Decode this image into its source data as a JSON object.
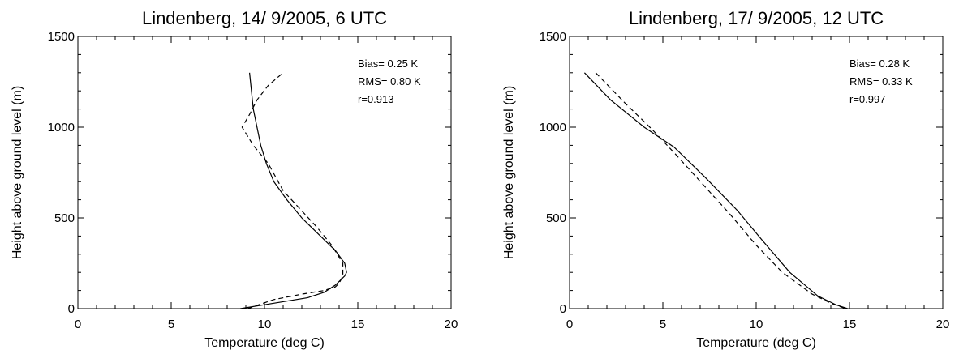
{
  "chart_data": [
    {
      "type": "line",
      "title": "Lindenberg, 14/ 9/2005,  6 UTC",
      "xlabel": "Temperature (deg C)",
      "ylabel": "Height above ground level (m)",
      "xlim": [
        0,
        20
      ],
      "ylim": [
        0,
        1500
      ],
      "x_ticks": [
        "0",
        "5",
        "10",
        "15",
        "20"
      ],
      "y_ticks": [
        "0",
        "500",
        "1000",
        "1500"
      ],
      "grid": false,
      "stats": [
        "Bias=  0.25 K",
        "RMS=  0.80 K",
        "r=0.913"
      ],
      "series": [
        {
          "style": "solid",
          "points": [
            [
              8.7,
              0
            ],
            [
              10.5,
              30
            ],
            [
              12.3,
              60
            ],
            [
              13.2,
              90
            ],
            [
              13.8,
              130
            ],
            [
              14.0,
              150
            ],
            [
              14.3,
              180
            ],
            [
              14.4,
              200
            ],
            [
              14.3,
              250
            ],
            [
              13.8,
              320
            ],
            [
              13.0,
              400
            ],
            [
              12.0,
              500
            ],
            [
              11.2,
              600
            ],
            [
              10.5,
              700
            ],
            [
              10.1,
              800
            ],
            [
              9.8,
              900
            ],
            [
              9.6,
              1000
            ],
            [
              9.4,
              1100
            ],
            [
              9.3,
              1200
            ],
            [
              9.2,
              1300
            ]
          ]
        },
        {
          "style": "dashed",
          "points": [
            [
              9.1,
              0
            ],
            [
              10.5,
              50
            ],
            [
              12.0,
              80
            ],
            [
              13.2,
              100
            ],
            [
              13.8,
              120
            ],
            [
              14.0,
              140
            ],
            [
              14.2,
              180
            ],
            [
              14.2,
              250
            ],
            [
              13.6,
              350
            ],
            [
              12.8,
              450
            ],
            [
              11.9,
              550
            ],
            [
              11.0,
              650
            ],
            [
              10.2,
              800
            ],
            [
              9.4,
              900
            ],
            [
              8.8,
              1000
            ],
            [
              9.2,
              1070
            ],
            [
              9.6,
              1150
            ],
            [
              10.2,
              1230
            ],
            [
              11.0,
              1300
            ]
          ]
        }
      ]
    },
    {
      "type": "line",
      "title": "Lindenberg, 17/ 9/2005, 12 UTC",
      "xlabel": "Temperature (deg C)",
      "ylabel": "Height above ground level (m)",
      "xlim": [
        0,
        20
      ],
      "ylim": [
        0,
        1500
      ],
      "x_ticks": [
        "0",
        "5",
        "10",
        "15",
        "20"
      ],
      "y_ticks": [
        "0",
        "500",
        "1000",
        "1500"
      ],
      "grid": false,
      "stats": [
        "Bias=  0.28 K",
        "RMS=  0.33 K",
        "r=0.997"
      ],
      "series": [
        {
          "style": "solid",
          "points": [
            [
              0.8,
              1300
            ],
            [
              2.2,
              1150
            ],
            [
              4.0,
              1000
            ],
            [
              5.6,
              890
            ],
            [
              7.3,
              720
            ],
            [
              9.0,
              540
            ],
            [
              10.3,
              380
            ],
            [
              11.8,
              200
            ],
            [
              13.3,
              70
            ],
            [
              14.3,
              20
            ],
            [
              14.9,
              0
            ]
          ]
        },
        {
          "style": "dashed",
          "points": [
            [
              1.4,
              1300
            ],
            [
              3.0,
              1130
            ],
            [
              4.4,
              990
            ],
            [
              5.6,
              860
            ],
            [
              7.1,
              690
            ],
            [
              8.6,
              520
            ],
            [
              10.0,
              350
            ],
            [
              11.4,
              200
            ],
            [
              13.0,
              80
            ],
            [
              14.0,
              30
            ],
            [
              14.8,
              0
            ]
          ]
        }
      ]
    }
  ]
}
